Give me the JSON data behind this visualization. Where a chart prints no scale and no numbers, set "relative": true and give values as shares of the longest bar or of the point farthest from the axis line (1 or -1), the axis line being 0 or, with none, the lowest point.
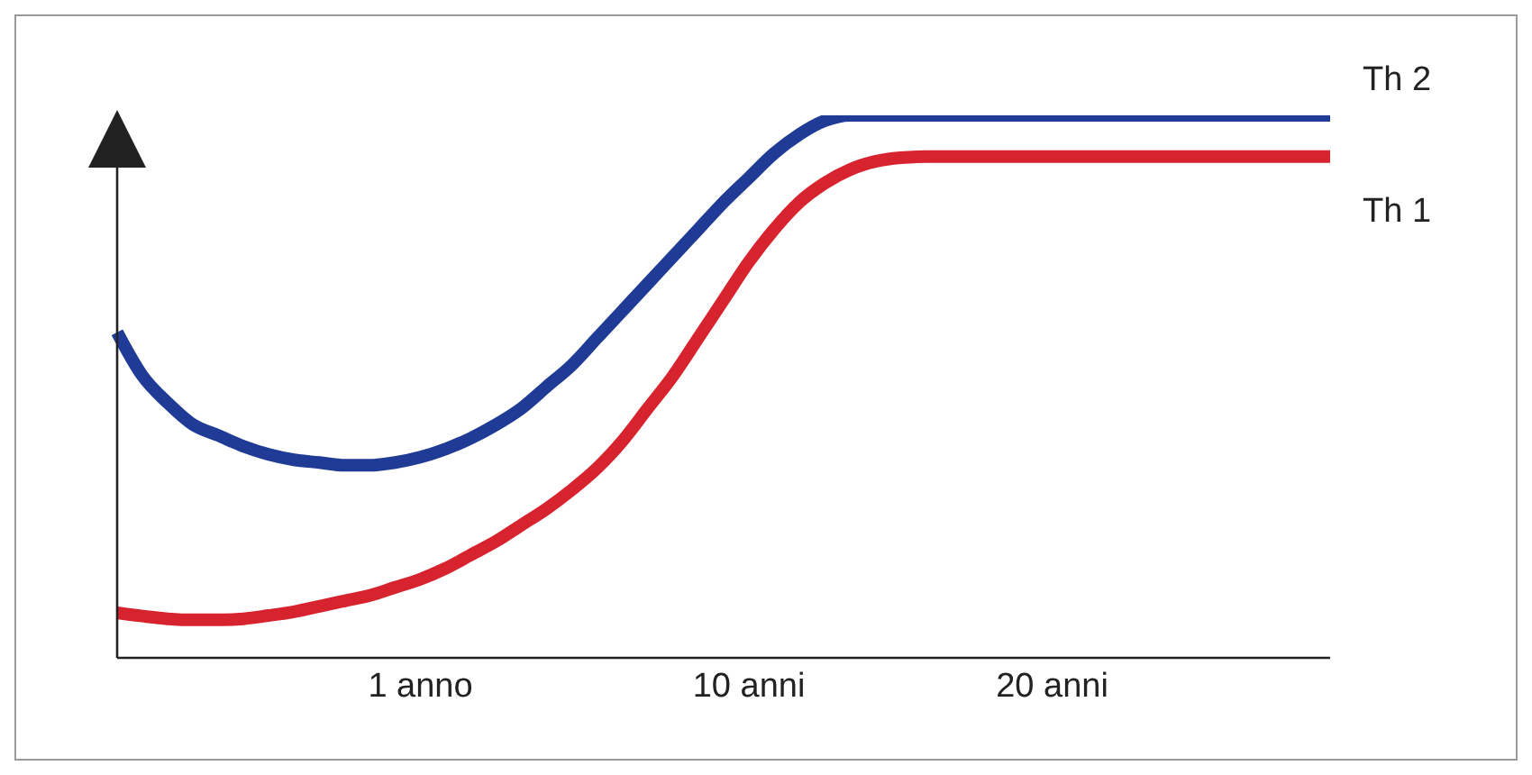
{
  "chart_data": {
    "type": "line",
    "relative": true,
    "categories": [
      null,
      null,
      null,
      null,
      null,
      null,
      null,
      null,
      null,
      null,
      null,
      null,
      "1 anno",
      null,
      null,
      null,
      null,
      null,
      null,
      null,
      null,
      null,
      null,
      null,
      null,
      "10 anni",
      null,
      null,
      null,
      null,
      null,
      null,
      null,
      null,
      null,
      null,
      null,
      "20 anni",
      null,
      null,
      null,
      null,
      null,
      null,
      null,
      null,
      null,
      null,
      null
    ],
    "series": [
      {
        "name": "Th 2",
        "color": "#1f3b95",
        "values": [
          0.6,
          0.52,
          0.47,
          0.43,
          0.41,
          0.39,
          0.375,
          0.365,
          0.36,
          0.355,
          0.355,
          0.36,
          0.37,
          0.385,
          0.405,
          0.43,
          0.46,
          0.5,
          0.54,
          0.59,
          0.64,
          0.69,
          0.74,
          0.79,
          0.84,
          0.885,
          0.93,
          0.965,
          0.99,
          1,
          1,
          1,
          1,
          1,
          1,
          1,
          1,
          1,
          1,
          1,
          1,
          1,
          1,
          1,
          1,
          1,
          1,
          1,
          1
        ]
      },
      {
        "name": "Th 1",
        "color": "#d7232e",
        "values": [
          0.083,
          0.077,
          0.072,
          0.07,
          0.07,
          0.072,
          0.078,
          0.085,
          0.095,
          0.105,
          0.115,
          0.13,
          0.145,
          0.165,
          0.19,
          0.215,
          0.245,
          0.275,
          0.31,
          0.35,
          0.4,
          0.46,
          0.52,
          0.59,
          0.66,
          0.73,
          0.79,
          0.84,
          0.875,
          0.9,
          0.915,
          0.922,
          0.924,
          0.924,
          0.924,
          0.924,
          0.924,
          0.924,
          0.924,
          0.924,
          0.924,
          0.924,
          0.924,
          0.924,
          0.924,
          0.924,
          0.924,
          0.924,
          0.924
        ]
      }
    ],
    "legend": false,
    "grid": false,
    "marker": "none",
    "line_style": "solid"
  }
}
